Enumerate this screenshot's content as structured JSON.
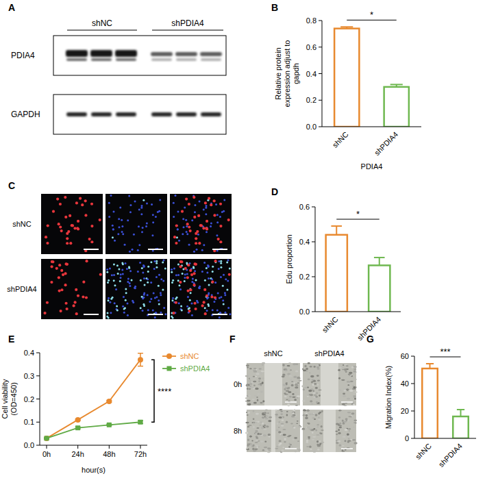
{
  "chart_data": [
    {
      "panel": "B",
      "type": "bar",
      "categories": [
        "shNC",
        "shPDIA4"
      ],
      "values": [
        0.74,
        0.3
      ],
      "errors": [
        0.012,
        0.018
      ],
      "colors": [
        "#e8892e",
        "#6fb850"
      ],
      "x_label": "PDIA4",
      "y_label": "Relative protein expression adjust to gapdh",
      "ylim": [
        0,
        0.8
      ],
      "yticks": [
        {
          "value": 0,
          "label": "0.0"
        },
        0.2,
        0.4,
        0.6,
        0.8
      ],
      "annotation": "*"
    },
    {
      "panel": "D",
      "type": "bar",
      "categories": [
        "shNC",
        "shPDIA4"
      ],
      "values": [
        0.44,
        0.265
      ],
      "errors": [
        0.05,
        0.045
      ],
      "colors": [
        "#e8892e",
        "#6fb850"
      ],
      "y_label": "Edu proportion",
      "ylim": [
        0,
        0.6
      ],
      "yticks": [
        {
          "value": 0,
          "label": "0.0"
        },
        0.2,
        0.4,
        0.6
      ],
      "annotation": "*"
    },
    {
      "panel": "E",
      "type": "line",
      "categories": [
        "0h",
        "24h",
        "48h",
        "72h"
      ],
      "series": [
        {
          "name": "shNC",
          "color": "#e8892e",
          "marker": "circle",
          "values": [
            0.03,
            0.11,
            0.19,
            0.37
          ],
          "errors": [
            0.002,
            0.003,
            0.004,
            0.028
          ]
        },
        {
          "name": "shPDIA4",
          "color": "#5faa45",
          "marker": "square",
          "values": [
            0.03,
            0.075,
            0.088,
            0.1
          ],
          "errors": [
            0.002,
            0.004,
            0.003,
            0.006
          ]
        }
      ],
      "x_label": "hour(s)",
      "y_label": "Cell viability (OD=450)",
      "ylim": [
        0,
        0.4
      ],
      "yticks": [
        {
          "value": 0,
          "label": "0.0"
        },
        0.1,
        0.2,
        0.3,
        0.4
      ],
      "legend": "right",
      "annotation": "****"
    },
    {
      "panel": "G",
      "type": "bar",
      "categories": [
        "shNC",
        "shPDIA4"
      ],
      "values": [
        51,
        16
      ],
      "errors": [
        3.5,
        5
      ],
      "colors": [
        "#e8892e",
        "#6fb850"
      ],
      "y_label": "Migration Index(%)",
      "ylim": [
        0,
        60
      ],
      "yticks": [
        0,
        20,
        40,
        60
      ],
      "annotation": "***"
    }
  ],
  "blot": {
    "panel": "A",
    "groups": [
      "shNC",
      "shPDIA4"
    ],
    "bands": [
      "PDIA4",
      "GAPDH"
    ]
  },
  "edu_images": {
    "panel": "C",
    "rows": [
      "shNC",
      "shPDIA4"
    ]
  },
  "wound_images": {
    "panel": "F",
    "columns": [
      "shNC",
      "shPDIA4"
    ],
    "rows": [
      "0h",
      "8h"
    ]
  }
}
